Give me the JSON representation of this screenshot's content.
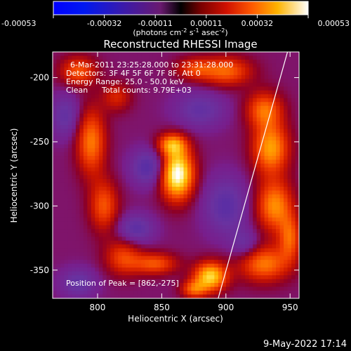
{
  "chart_data": {
    "type": "heatmap",
    "title": "Reconstructed RHESSI Image",
    "xlabel": "Heliocentric X (arcsec)",
    "ylabel": "Heliocentric Y (arcsec)",
    "xlim": [
      765,
      957
    ],
    "ylim": [
      -372,
      -180
    ],
    "x_ticks": [
      800,
      850,
      900,
      950
    ],
    "y_ticks": [
      -200,
      -250,
      -300,
      -350
    ],
    "colorbar": {
      "ticks": [
        "-0.00053",
        "-0.00032",
        "-0.00011",
        "0.00011",
        "0.00032",
        "0.00053"
      ],
      "range": [
        -0.00053,
        0.00053
      ],
      "units_text": "(photons cm",
      "units_sup1": "-2",
      "units_mid": " s",
      "units_sup2": "-1",
      "units_mid2": " asec",
      "units_sup3": "-2",
      "units_end": ")"
    },
    "info": {
      "time_range": "6-Mar-2011 23:25:28.000 to 23:31:28.000",
      "detectors": "Detectors: 3F 4F 5F 6F 7F 8F, Att 0",
      "energy": "Energy Range: 25.0 - 50.0 keV",
      "method": "Clean",
      "total_counts": "Total counts: 9.79E+03"
    },
    "peak": {
      "label": "Position of Peak = [862,-275]",
      "x": 862,
      "y": -275
    },
    "limb_line": [
      [
        894,
        -372
      ],
      [
        948,
        -180
      ]
    ],
    "sources": [
      {
        "x": 862,
        "y": -275,
        "strength": 1.0,
        "sx": 9,
        "sy": 14
      },
      {
        "x": 858,
        "y": -252,
        "strength": 0.55,
        "sx": 8,
        "sy": 6
      },
      {
        "x": 888,
        "y": -355,
        "strength": 0.8,
        "sx": 9,
        "sy": 8
      },
      {
        "x": 875,
        "y": -365,
        "strength": 0.45,
        "sx": 7,
        "sy": 5
      },
      {
        "x": 935,
        "y": -255,
        "strength": 0.65,
        "sx": 10,
        "sy": 14
      },
      {
        "x": 938,
        "y": -300,
        "strength": 0.6,
        "sx": 10,
        "sy": 14
      },
      {
        "x": 930,
        "y": -225,
        "strength": 0.5,
        "sx": 10,
        "sy": 10
      },
      {
        "x": 900,
        "y": -195,
        "strength": 0.5,
        "sx": 14,
        "sy": 8
      },
      {
        "x": 875,
        "y": -193,
        "strength": 0.35,
        "sx": 10,
        "sy": 6
      },
      {
        "x": 930,
        "y": -345,
        "strength": 0.55,
        "sx": 14,
        "sy": 10
      },
      {
        "x": 785,
        "y": -195,
        "strength": 0.45,
        "sx": 10,
        "sy": 8
      },
      {
        "x": 795,
        "y": -250,
        "strength": 0.55,
        "sx": 8,
        "sy": 18
      },
      {
        "x": 805,
        "y": -300,
        "strength": 0.45,
        "sx": 8,
        "sy": 14
      },
      {
        "x": 820,
        "y": -340,
        "strength": 0.4,
        "sx": 10,
        "sy": 10
      },
      {
        "x": 845,
        "y": -345,
        "strength": 0.45,
        "sx": 12,
        "sy": 6
      },
      {
        "x": 815,
        "y": -215,
        "strength": 0.3,
        "sx": 8,
        "sy": 8
      },
      {
        "x": 950,
        "y": -325,
        "strength": 0.45,
        "sx": 6,
        "sy": 12
      },
      {
        "x": 840,
        "y": -270,
        "strength": -0.4,
        "sx": 10,
        "sy": 10
      },
      {
        "x": 900,
        "y": -300,
        "strength": -0.35,
        "sx": 12,
        "sy": 16
      },
      {
        "x": 880,
        "y": -225,
        "strength": -0.3,
        "sx": 14,
        "sy": 10
      },
      {
        "x": 830,
        "y": -318,
        "strength": -0.35,
        "sx": 10,
        "sy": 8
      },
      {
        "x": 775,
        "y": -230,
        "strength": -0.3,
        "sx": 8,
        "sy": 12
      },
      {
        "x": 785,
        "y": -360,
        "strength": -0.3,
        "sx": 10,
        "sy": 8
      },
      {
        "x": 915,
        "y": -330,
        "strength": -0.25,
        "sx": 8,
        "sy": 8
      }
    ]
  },
  "footer_date": "9-May-2022 17:14"
}
